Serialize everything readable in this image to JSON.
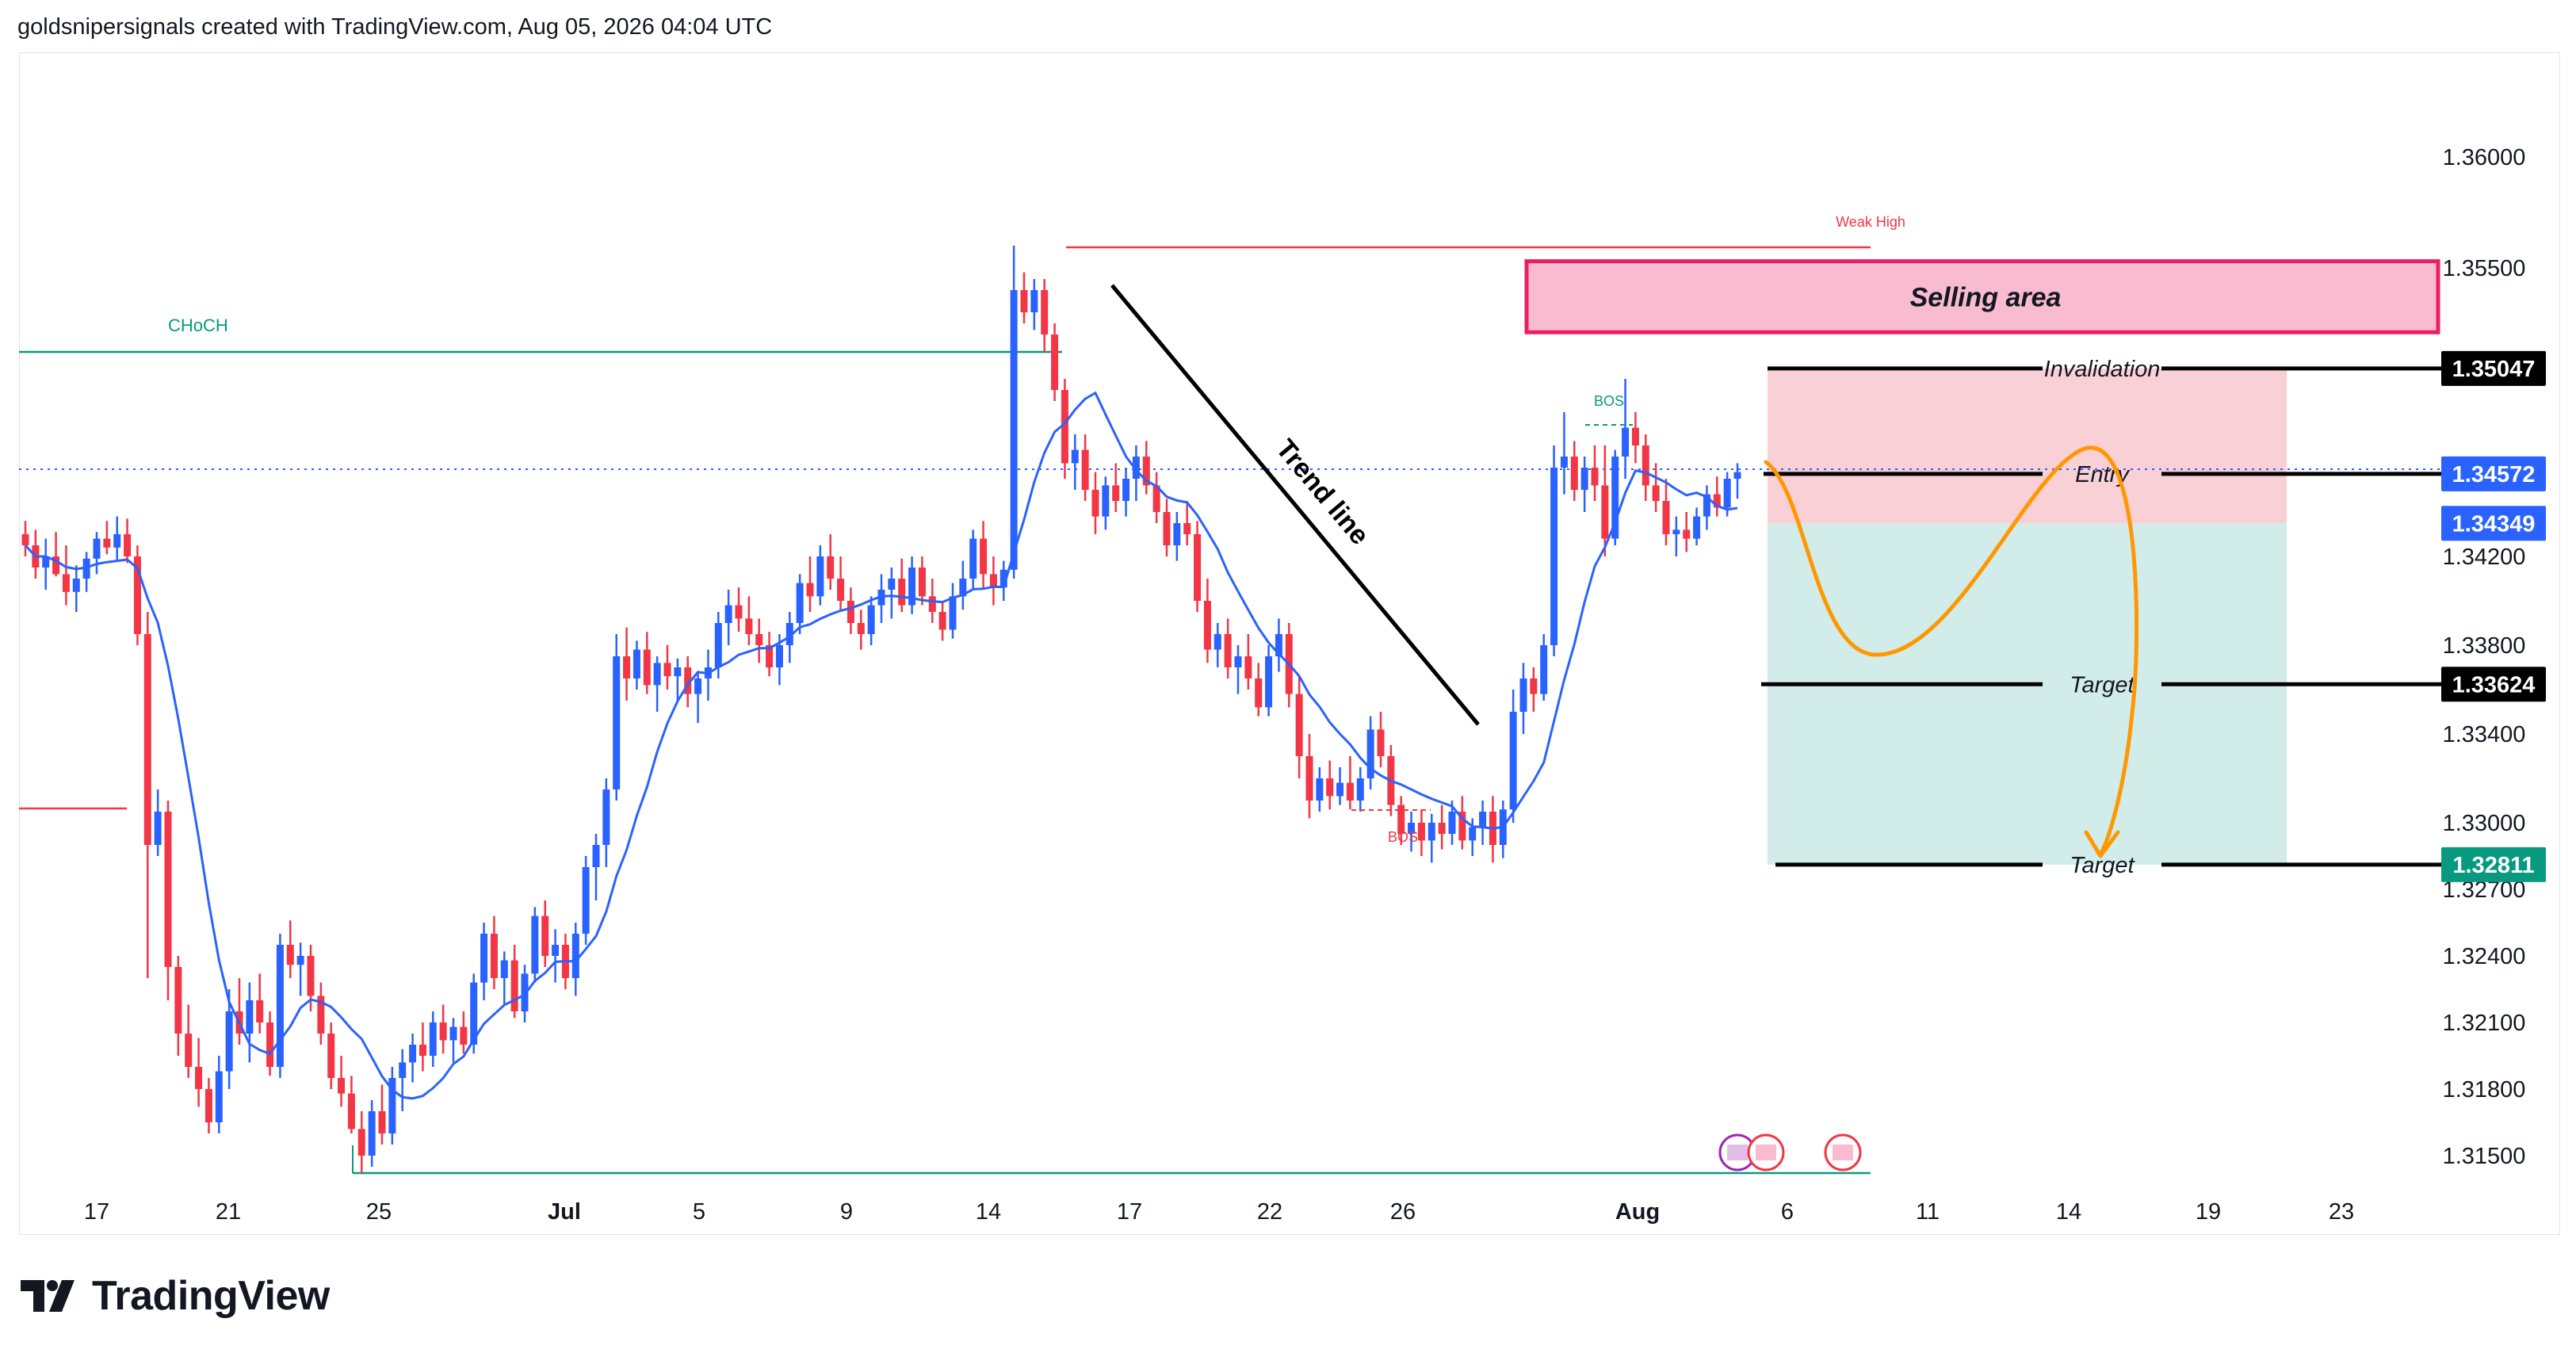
{
  "header": {
    "attribution": "goldsnipersignals created with TradingView.com, Aug 05, 2026 04:04 UTC"
  },
  "brand": {
    "logo_text": "TradingView"
  },
  "colors": {
    "up": "#2962ff",
    "down": "#f23645",
    "ma": "#2962ff",
    "sell_zone": "#f8bbd0",
    "sell_border": "#e91e63",
    "target_zone": "#b2dfdb",
    "risk_zone": "#f8c4cc",
    "path": "#ff9800",
    "choch": "#089981",
    "weak_high": "#f23645"
  },
  "chart_data": {
    "type": "candlestick",
    "y_ticks": [
      "1.36000",
      "1.35500",
      "1.35047",
      "1.34572",
      "1.34349",
      "1.34200",
      "1.33800",
      "1.33624",
      "1.33400",
      "1.33000",
      "1.32811",
      "1.32700",
      "1.32400",
      "1.32100",
      "1.31800",
      "1.31500"
    ],
    "x_ticks": [
      "17",
      "21",
      "25",
      "Jul",
      "5",
      "9",
      "14",
      "17",
      "22",
      "26",
      "Aug",
      "6",
      "11",
      "14",
      "19",
      "23"
    ],
    "price_tags": [
      {
        "label": "1.35047",
        "value": 1.35047,
        "color": "#000000"
      },
      {
        "label": "1.34572",
        "value": 1.34572,
        "color": "#2962ff"
      },
      {
        "label": "1.34349",
        "value": 1.34349,
        "color": "#2962ff"
      },
      {
        "label": "1.33624",
        "value": 1.33624,
        "color": "#000000"
      },
      {
        "label": "1.32811",
        "value": 1.32811,
        "color": "#089981"
      }
    ],
    "annotations": {
      "selling_area": "Selling area",
      "invalidation": "Invalidation",
      "entry": "Entry",
      "target1": "Target",
      "target2": "Target",
      "trend_line": "Trend line",
      "choch": "CHoCH",
      "weak_high": "Weak High",
      "bos_top": "BOS",
      "bos_bottom": "BOS"
    },
    "levels": {
      "selling_area": [
        1.3521,
        1.3553
      ],
      "invalidation": 1.35047,
      "entry": 1.34572,
      "target1": 1.33624,
      "target2": 1.32811,
      "weak_high": 1.3558,
      "choch": 1.3505,
      "low_line": 1.3142
    },
    "candles": [
      [
        1.343,
        1.3436,
        1.342,
        1.3425
      ],
      [
        1.3425,
        1.3432,
        1.341,
        1.3415
      ],
      [
        1.3415,
        1.3428,
        1.3405,
        1.342
      ],
      [
        1.342,
        1.3431,
        1.3411,
        1.3412
      ],
      [
        1.3412,
        1.3425,
        1.3398,
        1.3404
      ],
      [
        1.3404,
        1.3416,
        1.3395,
        1.341
      ],
      [
        1.341,
        1.3422,
        1.3404,
        1.3419
      ],
      [
        1.3419,
        1.3431,
        1.3412,
        1.3428
      ],
      [
        1.3428,
        1.3436,
        1.3421,
        1.3424
      ],
      [
        1.3424,
        1.3438,
        1.3418,
        1.343
      ],
      [
        1.343,
        1.3437,
        1.3417,
        1.342
      ],
      [
        1.342,
        1.3425,
        1.338,
        1.3385
      ],
      [
        1.3385,
        1.3395,
        1.323,
        1.329
      ],
      [
        1.329,
        1.3315,
        1.3285,
        1.3305
      ],
      [
        1.3305,
        1.331,
        1.322,
        1.3235
      ],
      [
        1.3235,
        1.324,
        1.3195,
        1.3205
      ],
      [
        1.3205,
        1.3218,
        1.3185,
        1.319
      ],
      [
        1.319,
        1.3203,
        1.3172,
        1.318
      ],
      [
        1.318,
        1.3185,
        1.316,
        1.3165
      ],
      [
        1.3165,
        1.3195,
        1.316,
        1.3188
      ],
      [
        1.3188,
        1.3225,
        1.318,
        1.3215
      ],
      [
        1.3215,
        1.323,
        1.32,
        1.3205
      ],
      [
        1.3205,
        1.3228,
        1.3192,
        1.322
      ],
      [
        1.322,
        1.3232,
        1.3205,
        1.321
      ],
      [
        1.321,
        1.3215,
        1.3186,
        1.319
      ],
      [
        1.319,
        1.325,
        1.3185,
        1.3245
      ],
      [
        1.3245,
        1.3256,
        1.323,
        1.3236
      ],
      [
        1.3236,
        1.3246,
        1.3222,
        1.324
      ],
      [
        1.324,
        1.3245,
        1.3215,
        1.3222
      ],
      [
        1.3222,
        1.3228,
        1.32,
        1.3205
      ],
      [
        1.3205,
        1.321,
        1.318,
        1.3185
      ],
      [
        1.3185,
        1.3195,
        1.3172,
        1.3178
      ],
      [
        1.3178,
        1.3186,
        1.316,
        1.3162
      ],
      [
        1.3162,
        1.317,
        1.3142,
        1.315
      ],
      [
        1.315,
        1.3175,
        1.3145,
        1.317
      ],
      [
        1.317,
        1.3182,
        1.3155,
        1.316
      ],
      [
        1.316,
        1.319,
        1.3155,
        1.3185
      ],
      [
        1.3185,
        1.3198,
        1.317,
        1.3192
      ],
      [
        1.3192,
        1.3205,
        1.3183,
        1.32
      ],
      [
        1.32,
        1.321,
        1.3188,
        1.3195
      ],
      [
        1.3195,
        1.3215,
        1.319,
        1.321
      ],
      [
        1.321,
        1.3218,
        1.3196,
        1.3202
      ],
      [
        1.3202,
        1.3212,
        1.3192,
        1.3208
      ],
      [
        1.3208,
        1.3215,
        1.3196,
        1.32
      ],
      [
        1.32,
        1.3232,
        1.3196,
        1.3228
      ],
      [
        1.3228,
        1.3255,
        1.322,
        1.325
      ],
      [
        1.325,
        1.3258,
        1.3225,
        1.323
      ],
      [
        1.323,
        1.3242,
        1.3218,
        1.3238
      ],
      [
        1.3238,
        1.3245,
        1.3212,
        1.3215
      ],
      [
        1.3215,
        1.3236,
        1.321,
        1.3232
      ],
      [
        1.3232,
        1.3262,
        1.3228,
        1.3258
      ],
      [
        1.3258,
        1.3265,
        1.3235,
        1.324
      ],
      [
        1.324,
        1.3252,
        1.3228,
        1.3245
      ],
      [
        1.3245,
        1.325,
        1.3225,
        1.323
      ],
      [
        1.323,
        1.3255,
        1.3222,
        1.325
      ],
      [
        1.325,
        1.3285,
        1.3245,
        1.328
      ],
      [
        1.328,
        1.3295,
        1.3265,
        1.329
      ],
      [
        1.329,
        1.332,
        1.328,
        1.3315
      ],
      [
        1.3315,
        1.3385,
        1.331,
        1.3375
      ],
      [
        1.3375,
        1.3388,
        1.3355,
        1.3365
      ],
      [
        1.3365,
        1.3382,
        1.336,
        1.3378
      ],
      [
        1.3378,
        1.3386,
        1.3358,
        1.3362
      ],
      [
        1.3362,
        1.3375,
        1.335,
        1.3372
      ],
      [
        1.3372,
        1.338,
        1.336,
        1.3366
      ],
      [
        1.3366,
        1.3374,
        1.3355,
        1.337
      ],
      [
        1.337,
        1.3375,
        1.3352,
        1.3358
      ],
      [
        1.3358,
        1.3368,
        1.3345,
        1.3365
      ],
      [
        1.3365,
        1.3378,
        1.3355,
        1.337
      ],
      [
        1.337,
        1.3395,
        1.3365,
        1.339
      ],
      [
        1.339,
        1.3405,
        1.338,
        1.3398
      ],
      [
        1.3398,
        1.3406,
        1.3386,
        1.3392
      ],
      [
        1.3392,
        1.3402,
        1.338,
        1.3385
      ],
      [
        1.3385,
        1.3392,
        1.3372,
        1.338
      ],
      [
        1.338,
        1.3386,
        1.3366,
        1.337
      ],
      [
        1.337,
        1.3385,
        1.3362,
        1.338
      ],
      [
        1.338,
        1.3395,
        1.3372,
        1.339
      ],
      [
        1.339,
        1.3412,
        1.3385,
        1.3408
      ],
      [
        1.3408,
        1.342,
        1.3395,
        1.3402
      ],
      [
        1.3402,
        1.3425,
        1.3398,
        1.342
      ],
      [
        1.342,
        1.343,
        1.3405,
        1.341
      ],
      [
        1.341,
        1.342,
        1.3395,
        1.34
      ],
      [
        1.34,
        1.3406,
        1.3385,
        1.339
      ],
      [
        1.339,
        1.3396,
        1.3378,
        1.3385
      ],
      [
        1.3385,
        1.3402,
        1.338,
        1.3398
      ],
      [
        1.3398,
        1.3412,
        1.339,
        1.3405
      ],
      [
        1.3405,
        1.3415,
        1.3392,
        1.341
      ],
      [
        1.341,
        1.3419,
        1.3395,
        1.3398
      ],
      [
        1.3398,
        1.342,
        1.3394,
        1.3415
      ],
      [
        1.3415,
        1.342,
        1.3398,
        1.3402
      ],
      [
        1.3402,
        1.341,
        1.339,
        1.3395
      ],
      [
        1.3395,
        1.34,
        1.3382,
        1.3387
      ],
      [
        1.3387,
        1.3408,
        1.3383,
        1.3402
      ],
      [
        1.3402,
        1.3418,
        1.3396,
        1.341
      ],
      [
        1.341,
        1.3432,
        1.3405,
        1.3428
      ],
      [
        1.3428,
        1.3436,
        1.3405,
        1.3412
      ],
      [
        1.3412,
        1.342,
        1.3398,
        1.3406
      ],
      [
        1.3406,
        1.3418,
        1.34,
        1.3414
      ],
      [
        1.3414,
        1.356,
        1.341,
        1.354
      ],
      [
        1.354,
        1.3548,
        1.3525,
        1.353
      ],
      [
        1.353,
        1.3545,
        1.3522,
        1.354
      ],
      [
        1.354,
        1.3545,
        1.3512,
        1.352
      ],
      [
        1.352,
        1.3525,
        1.349,
        1.3495
      ],
      [
        1.3495,
        1.35,
        1.3455,
        1.3462
      ],
      [
        1.3462,
        1.3475,
        1.345,
        1.3468
      ],
      [
        1.3468,
        1.3475,
        1.3445,
        1.345
      ],
      [
        1.345,
        1.3458,
        1.343,
        1.3438
      ],
      [
        1.3438,
        1.3456,
        1.3432,
        1.3452
      ],
      [
        1.3452,
        1.3462,
        1.344,
        1.3445
      ],
      [
        1.3445,
        1.346,
        1.3438,
        1.3455
      ],
      [
        1.3455,
        1.347,
        1.3445,
        1.3465
      ],
      [
        1.3465,
        1.3472,
        1.3448,
        1.3452
      ],
      [
        1.3452,
        1.3458,
        1.3435,
        1.344
      ],
      [
        1.344,
        1.3446,
        1.342,
        1.3425
      ],
      [
        1.3425,
        1.344,
        1.3418,
        1.3435
      ],
      [
        1.3435,
        1.3445,
        1.3425,
        1.343
      ],
      [
        1.343,
        1.3436,
        1.3395,
        1.34
      ],
      [
        1.34,
        1.341,
        1.3372,
        1.3378
      ],
      [
        1.3378,
        1.339,
        1.337,
        1.3385
      ],
      [
        1.3385,
        1.3392,
        1.3365,
        1.337
      ],
      [
        1.337,
        1.338,
        1.3358,
        1.3375
      ],
      [
        1.3375,
        1.3385,
        1.336,
        1.3365
      ],
      [
        1.3365,
        1.3372,
        1.3348,
        1.3352
      ],
      [
        1.3352,
        1.338,
        1.3348,
        1.3375
      ],
      [
        1.3375,
        1.3392,
        1.3368,
        1.3385
      ],
      [
        1.3385,
        1.339,
        1.3352,
        1.3358
      ],
      [
        1.3358,
        1.3366,
        1.332,
        1.333
      ],
      [
        1.333,
        1.334,
        1.3302,
        1.331
      ],
      [
        1.331,
        1.3325,
        1.3305,
        1.332
      ],
      [
        1.332,
        1.3328,
        1.3306,
        1.3312
      ],
      [
        1.3312,
        1.3325,
        1.3308,
        1.3318
      ],
      [
        1.3318,
        1.333,
        1.3306,
        1.331
      ],
      [
        1.331,
        1.3325,
        1.3305,
        1.332
      ],
      [
        1.332,
        1.3348,
        1.3315,
        1.3342
      ],
      [
        1.3342,
        1.335,
        1.3325,
        1.333
      ],
      [
        1.333,
        1.3335,
        1.3303,
        1.3308
      ],
      [
        1.3308,
        1.3312,
        1.329,
        1.3295
      ],
      [
        1.3295,
        1.3305,
        1.3287,
        1.33
      ],
      [
        1.33,
        1.3306,
        1.3285,
        1.3292
      ],
      [
        1.3292,
        1.3304,
        1.3282,
        1.33
      ],
      [
        1.33,
        1.3308,
        1.3288,
        1.3295
      ],
      [
        1.3295,
        1.331,
        1.329,
        1.3305
      ],
      [
        1.3305,
        1.3312,
        1.3288,
        1.3292
      ],
      [
        1.3292,
        1.3302,
        1.3285,
        1.3298
      ],
      [
        1.3298,
        1.331,
        1.329,
        1.3305
      ],
      [
        1.3305,
        1.3312,
        1.3282,
        1.329
      ],
      [
        1.329,
        1.331,
        1.3284,
        1.3306
      ],
      [
        1.3306,
        1.336,
        1.33,
        1.335
      ],
      [
        1.335,
        1.3372,
        1.334,
        1.3365
      ],
      [
        1.3365,
        1.337,
        1.335,
        1.3358
      ],
      [
        1.3358,
        1.3385,
        1.3355,
        1.338
      ],
      [
        1.338,
        1.347,
        1.3375,
        1.346
      ],
      [
        1.346,
        1.3485,
        1.3448,
        1.3465
      ],
      [
        1.3465,
        1.3472,
        1.3445,
        1.345
      ],
      [
        1.345,
        1.3465,
        1.344,
        1.346
      ],
      [
        1.346,
        1.347,
        1.3445,
        1.3452
      ],
      [
        1.3452,
        1.347,
        1.342,
        1.3428
      ],
      [
        1.3428,
        1.3468,
        1.3425,
        1.3465
      ],
      [
        1.3465,
        1.35,
        1.3455,
        1.3478
      ],
      [
        1.3478,
        1.3485,
        1.3462,
        1.347
      ],
      [
        1.347,
        1.3475,
        1.3445,
        1.3452
      ],
      [
        1.3452,
        1.3462,
        1.344,
        1.3445
      ],
      [
        1.3445,
        1.3455,
        1.3425,
        1.343
      ],
      [
        1.343,
        1.3438,
        1.342,
        1.3432
      ],
      [
        1.3432,
        1.344,
        1.3422,
        1.3428
      ],
      [
        1.3428,
        1.3442,
        1.3425,
        1.3438
      ],
      [
        1.3438,
        1.3452,
        1.3432,
        1.3448
      ],
      [
        1.3448,
        1.3456,
        1.3438,
        1.3442
      ],
      [
        1.3442,
        1.3458,
        1.3438,
        1.3455
      ],
      [
        1.3455,
        1.3462,
        1.3446,
        1.3458
      ]
    ],
    "ylim": [
      1.314,
      1.3617
    ]
  }
}
